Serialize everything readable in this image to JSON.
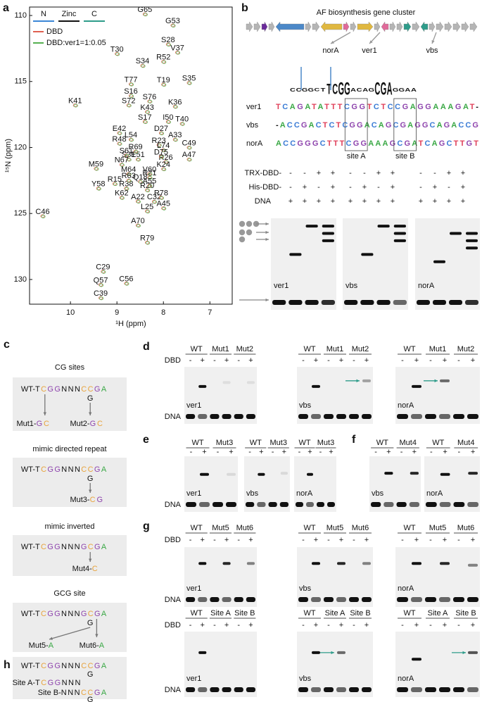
{
  "chart_data": {
    "type": "scatter",
    "panel_label": "a",
    "x_label": "¹H (ppm)",
    "y_label": "¹⁵N (ppm)",
    "xlim": [
      10.88,
      6.52
    ],
    "ylim": [
      109.36,
      131.87
    ],
    "xticks": [
      10,
      9,
      8,
      7
    ],
    "yticks": [
      110,
      115,
      120,
      125,
      130
    ],
    "conditions": [
      {
        "name": "DBD",
        "color": "#e06050"
      },
      {
        "name": "DBD:ver1=1:0.05",
        "color": "#55b050"
      }
    ],
    "series": [
      {
        "name": "N",
        "color": "#3b86d6",
        "labels": [
          "S28",
          "T19",
          "S16",
          "S17",
          "D27",
          "R23",
          "R26",
          "K24",
          "R21",
          "R15",
          "Q18",
          "R20",
          "A22",
          "L25"
        ],
        "x": [
          7.9,
          8.0,
          8.7,
          8.4,
          8.05,
          8.1,
          7.95,
          8.0,
          8.3,
          9.05,
          8.5,
          8.35,
          8.55,
          8.35
        ],
        "y": [
          112.19,
          115.23,
          116.08,
          118.05,
          118.91,
          119.81,
          121.09,
          121.63,
          122.27,
          122.75,
          122.59,
          123.23,
          124.08,
          124.83
        ]
      },
      {
        "name": "Zinc",
        "color": "#111111",
        "labels": [
          "G53",
          "V37",
          "R52",
          "T30",
          "S34",
          "S35",
          "K41",
          "K36",
          "K43",
          "I50",
          "T40",
          "E42",
          "A33",
          "R48",
          "C49",
          "L54",
          "S31",
          "E51",
          "A47",
          "R38",
          "A55",
          "C32",
          "A45",
          "C46",
          "C29",
          "C56",
          "C39"
        ],
        "x": [
          7.8,
          7.7,
          8.0,
          9.0,
          8.45,
          7.45,
          9.9,
          7.75,
          8.35,
          7.9,
          7.6,
          8.95,
          7.75,
          8.95,
          7.45,
          8.7,
          8.75,
          8.55,
          7.45,
          8.8,
          8.3,
          8.2,
          8.0,
          10.6,
          9.3,
          8.8,
          9.35
        ],
        "y": [
          110.75,
          112.8,
          113.5,
          112.9,
          113.8,
          115.1,
          116.8,
          116.9,
          117.3,
          118.05,
          118.2,
          118.9,
          119.4,
          119.7,
          120.0,
          119.4,
          120.9,
          120.9,
          120.9,
          123.1,
          122.9,
          124.1,
          124.6,
          125.2,
          129.4,
          130.3,
          131.4
        ]
      },
      {
        "name": "C",
        "color": "#2e9c8a",
        "labels": [
          "G65",
          "T77",
          "S76",
          "S72",
          "R69",
          "L74",
          "S61",
          "N67",
          "D75",
          "M59",
          "M64",
          "V60",
          "R63",
          "Y58",
          "K62",
          "R78",
          "A70",
          "R79",
          "Q57"
        ],
        "x": [
          8.4,
          8.7,
          8.3,
          8.75,
          8.6,
          8.0,
          8.8,
          8.9,
          8.05,
          9.45,
          8.75,
          8.3,
          8.75,
          9.4,
          8.9,
          8.05,
          8.55,
          8.35,
          9.35
        ],
        "y": [
          109.9,
          115.2,
          116.5,
          116.8,
          120.3,
          120.2,
          120.6,
          121.3,
          120.7,
          121.6,
          122.0,
          122.0,
          122.5,
          123.1,
          123.8,
          123.8,
          125.9,
          127.2,
          130.4
        ]
      }
    ]
  },
  "panel_b": {
    "label": "b",
    "cluster_title": "AF biosynthesis gene cluster",
    "genes": [
      "norA",
      "ver1",
      "vbs"
    ],
    "logo": "CCGGCTTCGGACAGCGAGGAA",
    "sequences": [
      {
        "name": "ver1",
        "seq": "TCAGATATTTCGGTCTCCGAGGAAAGAT-"
      },
      {
        "name": "vbs",
        "seq": "-ACCGACTCTCGGACAGCGAGGCAGACCG"
      },
      {
        "name": "norA",
        "seq": "ACCGGGCTTTCGGAAAGCGATCAGCTTGT"
      }
    ],
    "sites": [
      "site A",
      "site B"
    ],
    "table": [
      {
        "label": "TRX-DBD-",
        "cells": [
          "-",
          "-",
          "+",
          "+",
          "-",
          "-",
          "+",
          "+",
          "-",
          "-",
          "+",
          "+"
        ]
      },
      {
        "label": "His-DBD-",
        "cells": [
          "-",
          "+",
          "-",
          "+",
          "-",
          "+",
          "-",
          "+",
          "-",
          "+",
          "-",
          "+"
        ]
      },
      {
        "label": "DNA",
        "cells": [
          "+",
          "+",
          "+",
          "+",
          "+",
          "+",
          "+",
          "+",
          "+",
          "+",
          "+",
          "+"
        ]
      }
    ],
    "gels": [
      "ver1",
      "vbs",
      "norA"
    ]
  },
  "panel_c": {
    "label": "c",
    "boxes": [
      {
        "title": "CG sites",
        "wt": {
          "label": "WT-",
          "seq": "TCGGNNNCCGA"
        },
        "below": "G",
        "mutants": [
          {
            "label": "Mut1-",
            "seq": "GC"
          },
          {
            "label": "Mut2-",
            "seq": "GC"
          }
        ]
      },
      {
        "title": "mimic directed repeat",
        "wt": {
          "label": "WT-",
          "seq": "TCGGNNNCCGA"
        },
        "below": "G",
        "mutants": [
          {
            "label": "Mut3-",
            "seq": "CG"
          }
        ]
      },
      {
        "title": "mimic inverted",
        "wt": {
          "label": "WT-",
          "seq": "TCGGNNNGCGA"
        },
        "mutants": [
          {
            "label": "Mut4-",
            "seq": "C"
          }
        ]
      },
      {
        "title": "GCG site",
        "wt": {
          "label": "WT-",
          "seq": "TCGGNNNGCGA"
        },
        "below": "G",
        "mutants": [
          {
            "label": "Mut5-",
            "seq": "A"
          },
          {
            "label": "Mut6-",
            "seq": "A"
          }
        ]
      }
    ]
  },
  "panel_d": {
    "label": "d",
    "dbd": "DBD",
    "dna": "DNA",
    "gels": [
      {
        "name": "ver1",
        "headers": [
          "WT",
          "Mut1",
          "Mut2"
        ],
        "signs": [
          "-",
          "+",
          "-",
          "+",
          "-",
          "+"
        ]
      },
      {
        "name": "vbs",
        "headers": [
          "WT",
          "Mut1",
          "Mut2"
        ],
        "signs": [
          "-",
          "+",
          "-",
          "+",
          "-",
          "+"
        ]
      },
      {
        "name": "norA",
        "headers": [
          "WT",
          "Mut1",
          "Mut2"
        ],
        "signs": [
          "-",
          "+",
          "-",
          "+",
          "-",
          "+"
        ]
      }
    ]
  },
  "panel_e": {
    "label": "e",
    "dna": "DNA",
    "gels": [
      {
        "name": "ver1",
        "headers": [
          "WT",
          "Mut3"
        ],
        "signs": [
          "-",
          "+",
          "-",
          "+"
        ]
      },
      {
        "name": "vbs",
        "headers": [
          "WT",
          "Mut3"
        ],
        "signs": [
          "-",
          "+",
          "-",
          "+"
        ]
      },
      {
        "name": "norA",
        "headers": [
          "WT",
          "Mut3"
        ],
        "signs": [
          "-",
          "+",
          "-",
          "+"
        ]
      }
    ]
  },
  "panel_f": {
    "label": "f",
    "gels": [
      {
        "name": "vbs",
        "headers": [
          "WT",
          "Mut4"
        ],
        "signs": [
          "-",
          "+",
          "-",
          "+"
        ]
      },
      {
        "name": "norA",
        "headers": [
          "WT",
          "Mut4"
        ],
        "signs": [
          "-",
          "+",
          "-",
          "+"
        ]
      }
    ]
  },
  "panel_g": {
    "label": "g",
    "dbd": "DBD",
    "dna": "DNA",
    "gels": [
      {
        "name": "ver1",
        "headers": [
          "WT",
          "Mut5",
          "Mut6"
        ],
        "signs": [
          "-",
          "+",
          "-",
          "+",
          "-",
          "+"
        ]
      },
      {
        "name": "vbs",
        "headers": [
          "WT",
          "Mut5",
          "Mut6"
        ],
        "signs": [
          "-",
          "+",
          "-",
          "+",
          "-",
          "+"
        ]
      },
      {
        "name": "norA",
        "headers": [
          "WT",
          "Mut5",
          "Mut6"
        ],
        "signs": [
          "-",
          "+",
          "-",
          "+",
          "-",
          "+"
        ]
      }
    ]
  },
  "panel_h": {
    "label": "h",
    "dbd": "DBD",
    "dna": "DNA",
    "sequences": [
      {
        "label": "WT-",
        "seq": "TCGGNNNCCGA"
      },
      {
        "label": "Site A-",
        "seq": "TCGGNNN"
      },
      {
        "label": "Site B-",
        "seq": "NNNCCGA"
      }
    ],
    "below": "G",
    "gels": [
      {
        "name": "ver1",
        "headers": [
          "WT",
          "Site A",
          "Site B"
        ],
        "signs": [
          "-",
          "+",
          "-",
          "+",
          "-",
          "+"
        ]
      },
      {
        "name": "vbs",
        "headers": [
          "WT",
          "Site A",
          "Site B"
        ],
        "signs": [
          "-",
          "+",
          "-",
          "+",
          "-",
          "+"
        ]
      },
      {
        "name": "norA",
        "headers": [
          "WT",
          "Site A",
          "Site B"
        ],
        "signs": [
          "-",
          "+",
          "-",
          "+",
          "-",
          "+"
        ]
      }
    ]
  }
}
